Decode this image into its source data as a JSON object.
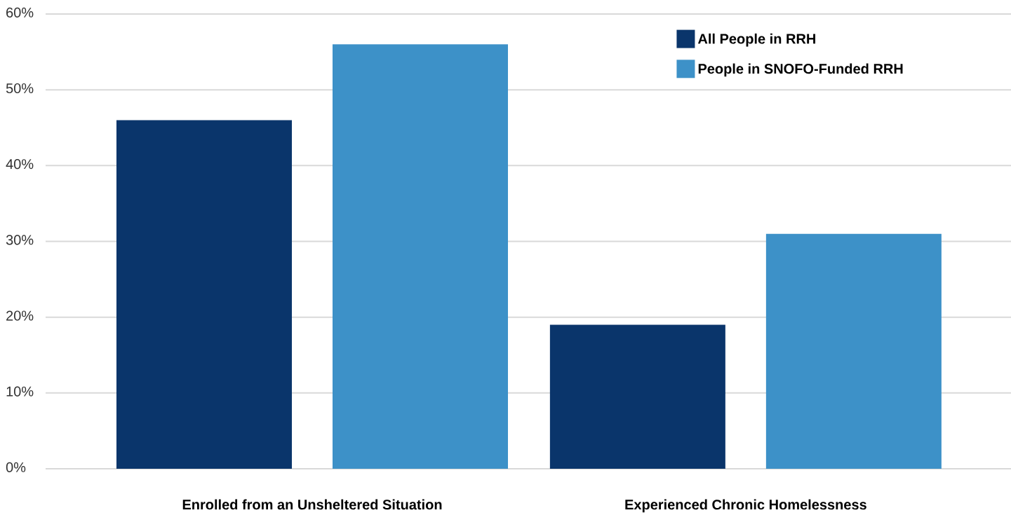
{
  "chart_data": {
    "type": "bar",
    "categories": [
      "Enrolled from an Unsheltered Situation",
      "Experienced Chronic Homelessness"
    ],
    "series": [
      {
        "name": "All People in RRH",
        "color": "#0a356b",
        "values": [
          46,
          19
        ]
      },
      {
        "name": "People in SNOFO-Funded RRH",
        "color": "#3d91c8",
        "values": [
          56,
          31
        ]
      }
    ],
    "ylim": [
      0,
      60
    ],
    "yticks": [
      {
        "value": 0,
        "label": "0%"
      },
      {
        "value": 10,
        "label": "10%"
      },
      {
        "value": 20,
        "label": "20%"
      },
      {
        "value": 30,
        "label": "30%"
      },
      {
        "value": 40,
        "label": "40%"
      },
      {
        "value": 50,
        "label": "50%"
      },
      {
        "value": 60,
        "label": "60%"
      }
    ],
    "grid": "y",
    "legend": "top right"
  }
}
